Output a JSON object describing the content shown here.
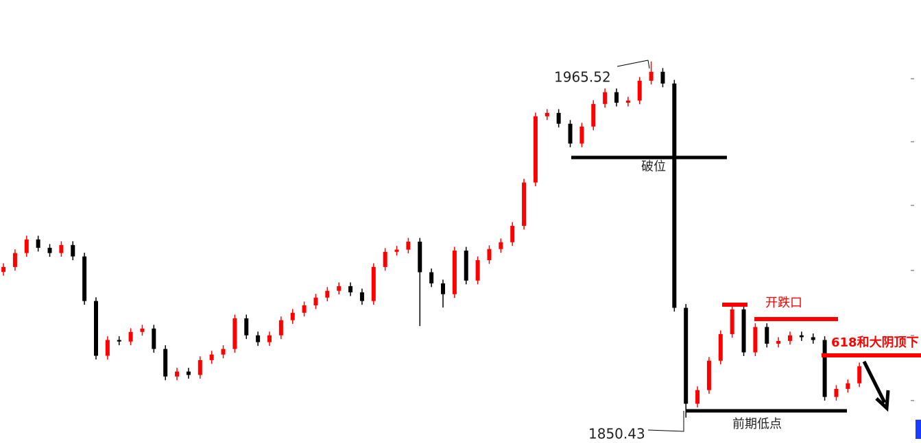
{
  "chart_data": {
    "type": "candlestick",
    "categories": [
      null,
      null,
      null,
      null,
      null,
      null,
      null,
      null,
      null,
      null,
      null,
      null,
      null,
      null,
      null,
      null,
      null,
      null,
      null,
      null,
      null,
      null,
      null,
      null,
      null,
      null,
      null,
      null,
      null,
      null,
      null,
      null,
      null,
      null,
      null,
      null,
      null,
      null,
      null,
      null,
      null,
      null,
      null,
      null,
      null,
      null,
      null,
      null,
      null,
      null,
      null,
      null,
      null,
      null,
      null,
      null,
      null,
      null,
      null,
      null,
      null,
      null,
      null,
      null,
      null,
      null,
      null,
      null,
      null,
      null,
      null,
      null,
      null,
      null,
      null
    ],
    "open": [
      1897.5,
      1899.1,
      1903.6,
      1908.0,
      1905.3,
      1903.6,
      1906.2,
      1902.5,
      1888.1,
      1870.4,
      1875.5,
      1875.0,
      1878.1,
      1879.2,
      1872.6,
      1863.7,
      1865.3,
      1864.2,
      1869.0,
      1870.8,
      1872.6,
      1882.5,
      1877.0,
      1874.8,
      1877.0,
      1881.9,
      1884.3,
      1886.7,
      1889.2,
      1891.4,
      1892.9,
      1890.9,
      1888.1,
      1899.1,
      1904.0,
      1904.7,
      1907.3,
      1897.4,
      1893.8,
      1890.3,
      1904.4,
      1894.7,
      1901.3,
      1904.9,
      1907.1,
      1912.4,
      1926.4,
      1947.8,
      1948.9,
      1945.4,
      1939.0,
      1944.5,
      1951.8,
      1955.6,
      1952.2,
      1952.9,
      1959.3,
      1962.2,
      1958.4,
      1885.9,
      1854.9,
      1859.3,
      1868.8,
      1877.4,
      1885.4,
      1871.5,
      1879.7,
      1874.3,
      1875.2,
      1877.0,
      1876.4,
      1875.5,
      1857.1,
      1859.7,
      1861.5
    ],
    "high": [
      1900.3,
      1904.8,
      1909.2,
      1909.2,
      1906.5,
      1907.4,
      1907.4,
      1903.7,
      1889.3,
      1876.7,
      1876.7,
      1879.3,
      1880.4,
      1880.4,
      1873.8,
      1866.5,
      1866.5,
      1870.2,
      1872.0,
      1873.8,
      1883.7,
      1883.7,
      1878.2,
      1878.2,
      1883.1,
      1885.5,
      1887.9,
      1890.4,
      1892.6,
      1894.1,
      1894.1,
      1892.1,
      1900.3,
      1905.2,
      1905.9,
      1908.5,
      1908.5,
      1898.6,
      1895.0,
      1905.6,
      1905.6,
      1902.5,
      1906.1,
      1908.3,
      1913.6,
      1927.6,
      1949.0,
      1950.1,
      1950.1,
      1946.6,
      1945.7,
      1953.0,
      1956.8,
      1956.8,
      1954.1,
      1960.5,
      1965.52,
      1963.4,
      1959.6,
      1887.1,
      1860.5,
      1870.0,
      1878.6,
      1886.6,
      1886.6,
      1880.9,
      1880.9,
      1876.4,
      1878.2,
      1878.2,
      1877.6,
      1876.7,
      1860.9,
      1862.7,
      1868.2
    ],
    "low": [
      1896.3,
      1897.9,
      1902.4,
      1904.1,
      1902.4,
      1902.4,
      1901.3,
      1886.9,
      1869.2,
      1869.2,
      1873.8,
      1873.8,
      1876.9,
      1871.4,
      1862.5,
      1862.5,
      1863.0,
      1863.0,
      1867.8,
      1869.6,
      1871.4,
      1875.8,
      1873.6,
      1873.6,
      1875.8,
      1880.7,
      1883.1,
      1885.5,
      1888.0,
      1890.2,
      1889.7,
      1886.9,
      1886.9,
      1897.9,
      1902.8,
      1903.5,
      1880.0,
      1892.6,
      1886.0,
      1889.1,
      1893.5,
      1893.5,
      1900.1,
      1903.7,
      1905.9,
      1911.2,
      1925.2,
      1946.6,
      1944.2,
      1937.8,
      1937.8,
      1943.3,
      1950.6,
      1951.0,
      1951.0,
      1951.7,
      1958.1,
      1957.2,
      1884.7,
      1850.43,
      1853.7,
      1858.1,
      1867.6,
      1876.2,
      1870.3,
      1870.3,
      1873.1,
      1873.1,
      1874.0,
      1875.2,
      1874.3,
      1855.9,
      1855.9,
      1858.5,
      1860.3
    ],
    "close": [
      1899.1,
      1903.6,
      1908.0,
      1905.3,
      1903.6,
      1906.2,
      1902.5,
      1888.1,
      1870.4,
      1875.5,
      1875.0,
      1878.1,
      1879.2,
      1872.6,
      1863.7,
      1865.3,
      1864.2,
      1869.0,
      1870.8,
      1872.6,
      1882.5,
      1877.0,
      1874.8,
      1877.0,
      1881.9,
      1884.3,
      1886.7,
      1889.2,
      1891.4,
      1892.9,
      1890.9,
      1888.1,
      1899.1,
      1904.0,
      1904.7,
      1907.3,
      1897.4,
      1893.8,
      1890.3,
      1904.4,
      1894.7,
      1901.3,
      1904.9,
      1907.1,
      1912.4,
      1926.4,
      1947.8,
      1948.9,
      1945.4,
      1939.0,
      1944.5,
      1951.8,
      1955.6,
      1952.2,
      1952.9,
      1959.3,
      1962.2,
      1958.4,
      1885.9,
      1854.9,
      1859.3,
      1868.8,
      1877.4,
      1885.4,
      1871.5,
      1879.7,
      1874.3,
      1875.2,
      1877.0,
      1876.4,
      1875.5,
      1857.1,
      1859.7,
      1861.5,
      1867.0
    ],
    "up_color": "#ff0000",
    "down_color": "#000000",
    "ylim": [
      1842.2,
      1985.4
    ],
    "annotations": {
      "high_label": "1965.52",
      "low_label": "1850.43",
      "break": "破位",
      "gap": "开跌口",
      "prior_low": "前期低点",
      "resistance": "618和大阴顶下"
    }
  }
}
